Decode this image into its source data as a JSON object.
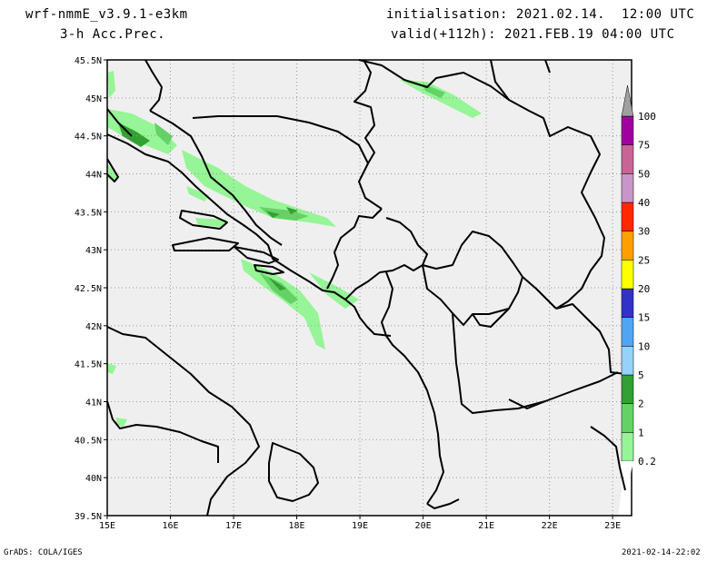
{
  "header": {
    "model": "wrf-nmmE_v3.9.1-e3km",
    "product": "3-h Acc.Prec.",
    "init": "initialisation: 2021.02.14.  12:00 UTC",
    "valid": "valid(+112h): 2021.FEB.19 04:00 UTC"
  },
  "footer": {
    "credit": "GrADS: COLA/IGES",
    "timestamp": "2021-02-14-22:02"
  },
  "map": {
    "lon_ticks": [
      "15E",
      "16E",
      "17E",
      "18E",
      "19E",
      "20E",
      "21E",
      "22E",
      "23E"
    ],
    "lat_ticks": [
      "45.5N",
      "45N",
      "44.5N",
      "44N",
      "43.5N",
      "43N",
      "42.5N",
      "42N",
      "41.5N",
      "41N",
      "40.5N",
      "40N",
      "39.5N"
    ],
    "extent": {
      "lon": [
        15,
        23.3
      ],
      "lat": [
        39.5,
        45.5
      ]
    },
    "background_color": "#efefef"
  },
  "colorbar": {
    "labels": [
      "0.2",
      "1",
      "2",
      "5",
      "10",
      "15",
      "20",
      "25",
      "30",
      "40",
      "50",
      "75",
      "100"
    ],
    "colors": [
      "#96f596",
      "#64d264",
      "#32a032",
      "#96d2fa",
      "#50a5f5",
      "#3232c8",
      "#ffff00",
      "#ffa000",
      "#ff2800",
      "#c896c8",
      "#c86496",
      "#a000a0",
      "#a0a0a0"
    ]
  }
}
